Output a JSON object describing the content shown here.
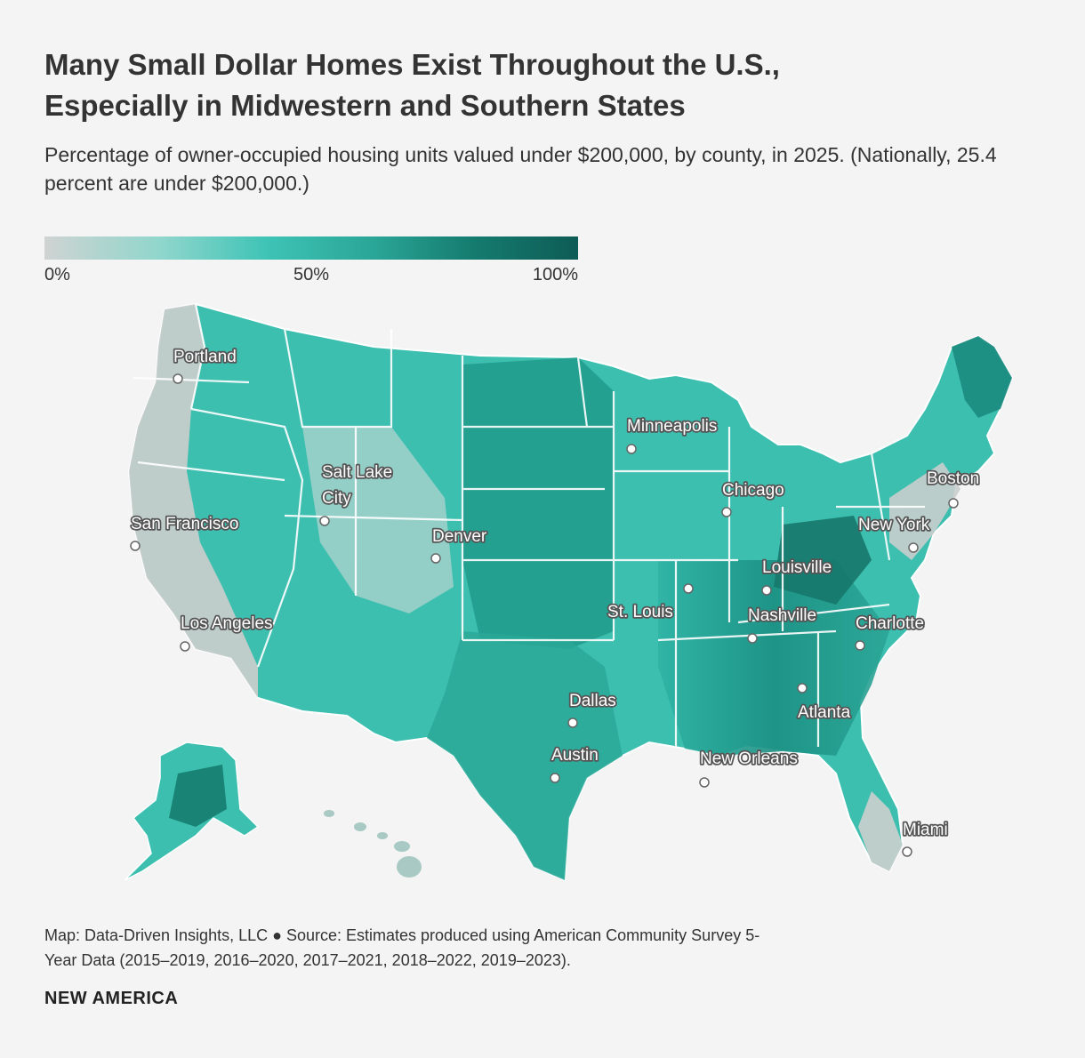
{
  "title": {
    "line1": "Many Small Dollar Homes Exist Throughout the U.S.,",
    "line2": "Especially in Midwestern and Southern States"
  },
  "subtitle": {
    "line1": "Percentage of owner-occupied housing units valued under $200,000, by county, in",
    "line2": "2025. (Nationally, 25.4 percent are under $200,000.)"
  },
  "legend": {
    "labels": [
      "0%",
      "50%",
      "100%"
    ],
    "colors": [
      "#cfd3d2",
      "#8fd6cc",
      "#3dc3b5",
      "#2aa596",
      "#157c70",
      "#0d5c55"
    ]
  },
  "map": {
    "cities": [
      {
        "name": "Portland"
      },
      {
        "name_line1": "Salt Lake",
        "name_line2": "City"
      },
      {
        "name": "San Francisco"
      },
      {
        "name": "Denver"
      },
      {
        "name": "Los Angeles"
      },
      {
        "name": "Minneapolis"
      },
      {
        "name": "Chicago"
      },
      {
        "name": "Boston"
      },
      {
        "name": "New York"
      },
      {
        "name": "Louisville"
      },
      {
        "name": "St. Louis"
      },
      {
        "name": "Nashville"
      },
      {
        "name": "Charlotte"
      },
      {
        "name": "Dallas"
      },
      {
        "name": "Atlanta"
      },
      {
        "name": "Austin"
      },
      {
        "name": "New Orleans"
      },
      {
        "name": "Miami"
      }
    ]
  },
  "footer": {
    "line1": "Map: Data-Driven Insights, LLC ● Source: Estimates produced using American Community Survey 5-",
    "line2": "Year Data (2015–2019, 2016–2020, 2017–2021, 2018–2022, 2019–2023)."
  },
  "brand": "NEW AMERICA"
}
